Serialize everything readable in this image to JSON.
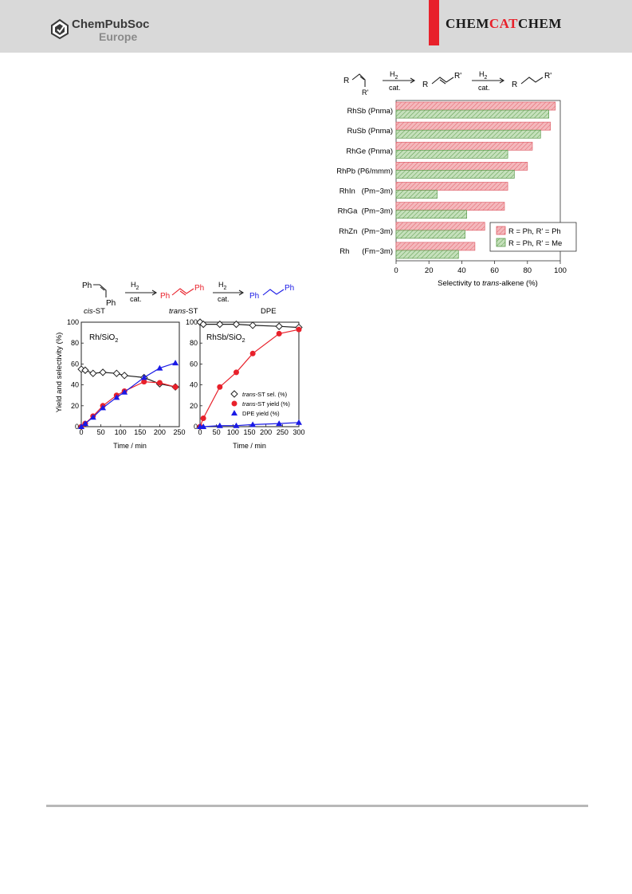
{
  "header": {
    "publisher_line1": "ChemPubSoc",
    "publisher_line2": "Europe",
    "journal_part1": "CHEM",
    "journal_part2": "CAT",
    "journal_part3": "CHEM"
  },
  "colors": {
    "red": "#e8202a",
    "blue": "#1a1ae6",
    "pink_fill": "#f4b8bc",
    "pink_stroke": "#e0606a",
    "green_fill": "#c5e0bb",
    "green_stroke": "#5a9a4a"
  },
  "scheme_top": {
    "h2": "H",
    "h2_sub": "2",
    "cat": "cat.",
    "R": "R",
    "Rp": "R'"
  },
  "scheme_left": {
    "cis_label": "cis",
    "cis_suffix": "-ST",
    "trans_label": "trans",
    "trans_suffix": "-ST",
    "dpe_label": "DPE",
    "Ph": "Ph",
    "h2": "H",
    "h2_sub": "2",
    "cat": "cat."
  },
  "chart_data": [
    {
      "type": "bar",
      "orientation": "horizontal",
      "categories": [
        "RhSb (Pnma)",
        "RuSb (Pnma)",
        "RhGe (Pnma)",
        "RhPb (P6/mmm)",
        "RhIn   (Pm−3m)",
        "RhGa  (Pm−3m)",
        "RhZn  (Pm−3m)",
        "Rh      (Fm−3m)"
      ],
      "series": [
        {
          "name": "R = Ph, R' = Ph",
          "values": [
            97,
            94,
            83,
            80,
            68,
            66,
            54,
            48
          ]
        },
        {
          "name": "R = Ph, R' = Me",
          "values": [
            93,
            88,
            68,
            72,
            25,
            43,
            42,
            38
          ]
        }
      ],
      "xlabel_pre": "Selectivity to ",
      "xlabel_italic": "trans",
      "xlabel_post": "-alkene (%)",
      "xlim": [
        0,
        100
      ],
      "xticks": [
        0,
        20,
        40,
        60,
        80,
        100
      ],
      "legend_position": "bottom-right"
    },
    {
      "type": "scatter",
      "panel_label": "Rh/SiO",
      "panel_label_sub": "2",
      "xlabel": "Time / min",
      "ylabel": "Yield and selectivity (%)",
      "xlim": [
        0,
        250
      ],
      "ylim": [
        0,
        100
      ],
      "xticks": [
        0,
        50,
        100,
        150,
        200,
        250
      ],
      "yticks": [
        0,
        20,
        40,
        60,
        80,
        100
      ],
      "series": [
        {
          "key": "sel",
          "marker": "diamond",
          "x": [
            0,
            10,
            30,
            55,
            90,
            110,
            160,
            200,
            240
          ],
          "y": [
            55,
            54,
            51,
            52,
            51,
            49,
            47,
            41,
            38
          ]
        },
        {
          "key": "trans",
          "marker": "circle",
          "x": [
            0,
            10,
            30,
            55,
            90,
            110,
            160,
            200,
            240
          ],
          "y": [
            0,
            3,
            10,
            20,
            30,
            34,
            43,
            42,
            38
          ]
        },
        {
          "key": "dpe",
          "marker": "triangle",
          "x": [
            0,
            10,
            30,
            55,
            90,
            110,
            160,
            200,
            240
          ],
          "y": [
            0,
            3,
            9,
            18,
            28,
            33,
            47,
            56,
            61
          ]
        }
      ]
    },
    {
      "type": "scatter",
      "panel_label": "RhSb/SiO",
      "panel_label_sub": "2",
      "xlabel": "Time / min",
      "xlim": [
        0,
        300
      ],
      "ylim": [
        0,
        100
      ],
      "xticks": [
        0,
        50,
        100,
        150,
        200,
        250,
        300
      ],
      "yticks": [
        0,
        20,
        40,
        60,
        80,
        100
      ],
      "legend": [
        {
          "key": "sel",
          "italic": "trans",
          "text": "-ST sel. (%)"
        },
        {
          "key": "trans",
          "italic": "trans",
          "text": "-ST yield (%)"
        },
        {
          "key": "dpe",
          "italic": "",
          "text": "DPE yield (%)"
        }
      ],
      "series": [
        {
          "key": "sel",
          "marker": "diamond",
          "x": [
            0,
            10,
            60,
            110,
            160,
            240,
            300
          ],
          "y": [
            100,
            98,
            98,
            98,
            97,
            96,
            95
          ]
        },
        {
          "key": "trans",
          "marker": "circle",
          "x": [
            0,
            10,
            60,
            110,
            160,
            240,
            300
          ],
          "y": [
            0,
            8,
            38,
            52,
            70,
            89,
            93
          ]
        },
        {
          "key": "dpe",
          "marker": "triangle",
          "x": [
            0,
            10,
            60,
            110,
            160,
            240,
            300
          ],
          "y": [
            0,
            0,
            1,
            1,
            2,
            3,
            4
          ]
        }
      ]
    }
  ]
}
